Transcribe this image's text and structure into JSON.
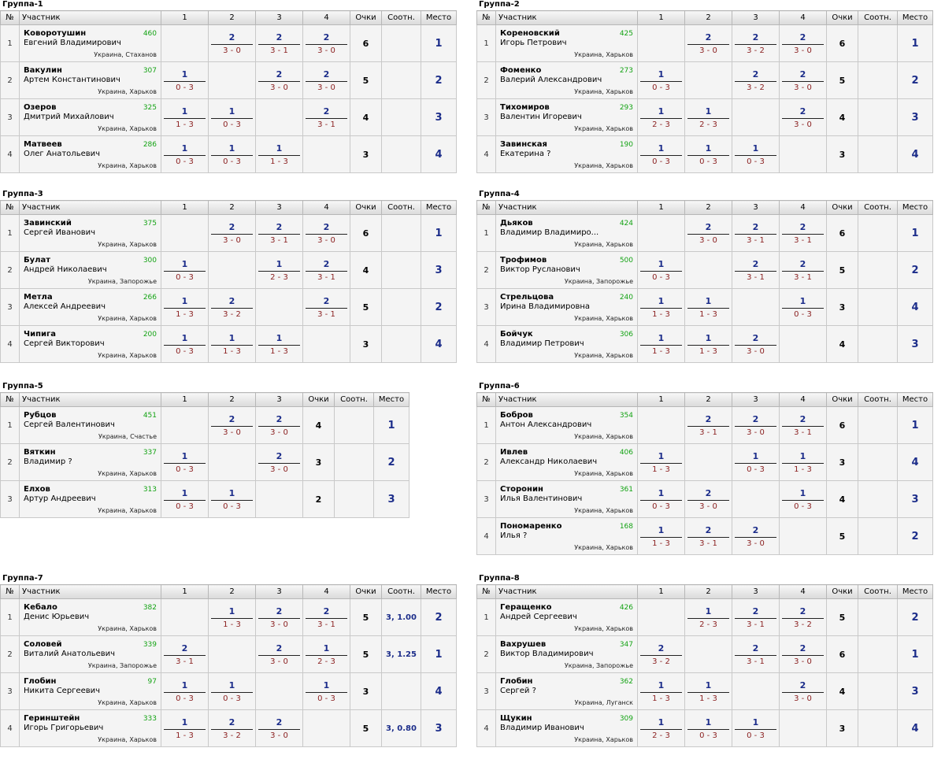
{
  "headers": {
    "no": "№",
    "participant": "Участник",
    "points": "Очки",
    "ratio": "Соотн.",
    "place": "Место"
  },
  "groups": [
    {
      "title": "Группа-1",
      "cols": [
        "1",
        "2",
        "3",
        "4"
      ],
      "rows": [
        {
          "n": "1",
          "last": "Коворотушин",
          "first": "Евгений Владимирович",
          "rating": "460",
          "city": "Украина, Стаханов",
          "results": [
            null,
            {
              "p": "2",
              "s": "3 - 0"
            },
            {
              "p": "2",
              "s": "3 - 1"
            },
            {
              "p": "2",
              "s": "3 - 0"
            }
          ],
          "points": "6",
          "ratio": "",
          "place": "1"
        },
        {
          "n": "2",
          "last": "Вакулин",
          "first": "Артем Константинович",
          "rating": "307",
          "city": "Украина, Харьков",
          "results": [
            {
              "p": "1",
              "s": "0 - 3"
            },
            null,
            {
              "p": "2",
              "s": "3 - 0"
            },
            {
              "p": "2",
              "s": "3 - 0"
            }
          ],
          "points": "5",
          "ratio": "",
          "place": "2"
        },
        {
          "n": "3",
          "last": "Озеров",
          "first": "Дмитрий Михайлович",
          "rating": "325",
          "city": "Украина, Харьков",
          "results": [
            {
              "p": "1",
              "s": "1 - 3"
            },
            {
              "p": "1",
              "s": "0 - 3"
            },
            null,
            {
              "p": "2",
              "s": "3 - 1"
            }
          ],
          "points": "4",
          "ratio": "",
          "place": "3"
        },
        {
          "n": "4",
          "last": "Матвеев",
          "first": "Олег Анатольевич",
          "rating": "286",
          "city": "Украина, Харьков",
          "results": [
            {
              "p": "1",
              "s": "0 - 3"
            },
            {
              "p": "1",
              "s": "0 - 3"
            },
            {
              "p": "1",
              "s": "1 - 3"
            },
            null
          ],
          "points": "3",
          "ratio": "",
          "place": "4"
        }
      ]
    },
    {
      "title": "Группа-2",
      "cols": [
        "1",
        "2",
        "3",
        "4"
      ],
      "rows": [
        {
          "n": "1",
          "last": "Кореновский",
          "first": "Игорь Петрович",
          "rating": "425",
          "city": "Украина, Харьков",
          "results": [
            null,
            {
              "p": "2",
              "s": "3 - 0"
            },
            {
              "p": "2",
              "s": "3 - 2"
            },
            {
              "p": "2",
              "s": "3 - 0"
            }
          ],
          "points": "6",
          "ratio": "",
          "place": "1"
        },
        {
          "n": "2",
          "last": "Фоменко",
          "first": "Валерий Александрович",
          "rating": "273",
          "city": "Украина, Харьков",
          "results": [
            {
              "p": "1",
              "s": "0 - 3"
            },
            null,
            {
              "p": "2",
              "s": "3 - 2"
            },
            {
              "p": "2",
              "s": "3 - 0"
            }
          ],
          "points": "5",
          "ratio": "",
          "place": "2"
        },
        {
          "n": "3",
          "last": "Тихомиров",
          "first": "Валентин Игоревич",
          "rating": "293",
          "city": "Украина, Харьков",
          "results": [
            {
              "p": "1",
              "s": "2 - 3"
            },
            {
              "p": "1",
              "s": "2 - 3"
            },
            null,
            {
              "p": "2",
              "s": "3 - 0"
            }
          ],
          "points": "4",
          "ratio": "",
          "place": "3"
        },
        {
          "n": "4",
          "last": "Завинская",
          "first": "Екатерина ?",
          "rating": "190",
          "city": "Украина, Харьков",
          "results": [
            {
              "p": "1",
              "s": "0 - 3"
            },
            {
              "p": "1",
              "s": "0 - 3"
            },
            {
              "p": "1",
              "s": "0 - 3"
            },
            null
          ],
          "points": "3",
          "ratio": "",
          "place": "4"
        }
      ]
    },
    {
      "title": "Группа-3",
      "cols": [
        "1",
        "2",
        "3",
        "4"
      ],
      "rows": [
        {
          "n": "1",
          "last": "Завинский",
          "first": "Сергей Иванович",
          "rating": "375",
          "city": "Украина, Харьков",
          "results": [
            null,
            {
              "p": "2",
              "s": "3 - 0"
            },
            {
              "p": "2",
              "s": "3 - 1"
            },
            {
              "p": "2",
              "s": "3 - 0"
            }
          ],
          "points": "6",
          "ratio": "",
          "place": "1"
        },
        {
          "n": "2",
          "last": "Булат",
          "first": "Андрей Николаевич",
          "rating": "300",
          "city": "Украина, Запорожье",
          "results": [
            {
              "p": "1",
              "s": "0 - 3"
            },
            null,
            {
              "p": "1",
              "s": "2 - 3"
            },
            {
              "p": "2",
              "s": "3 - 1"
            }
          ],
          "points": "4",
          "ratio": "",
          "place": "3"
        },
        {
          "n": "3",
          "last": "Метла",
          "first": "Алексей Андреевич",
          "rating": "266",
          "city": "Украина, Харьков",
          "results": [
            {
              "p": "1",
              "s": "1 - 3"
            },
            {
              "p": "2",
              "s": "3 - 2"
            },
            null,
            {
              "p": "2",
              "s": "3 - 1"
            }
          ],
          "points": "5",
          "ratio": "",
          "place": "2"
        },
        {
          "n": "4",
          "last": "Чипига",
          "first": "Сергей Викторович",
          "rating": "200",
          "city": "Украина, Харьков",
          "results": [
            {
              "p": "1",
              "s": "0 - 3"
            },
            {
              "p": "1",
              "s": "1 - 3"
            },
            {
              "p": "1",
              "s": "1 - 3"
            },
            null
          ],
          "points": "3",
          "ratio": "",
          "place": "4"
        }
      ]
    },
    {
      "title": "Группа-4",
      "cols": [
        "1",
        "2",
        "3",
        "4"
      ],
      "rows": [
        {
          "n": "1",
          "last": "Дьяков",
          "first": "Владимир Владимиро...",
          "rating": "424",
          "city": "Украина, Харьков",
          "results": [
            null,
            {
              "p": "2",
              "s": "3 - 0"
            },
            {
              "p": "2",
              "s": "3 - 1"
            },
            {
              "p": "2",
              "s": "3 - 1"
            }
          ],
          "points": "6",
          "ratio": "",
          "place": "1"
        },
        {
          "n": "2",
          "last": "Трофимов",
          "first": "Виктор Русланович",
          "rating": "500",
          "city": "Украина, Запорожье",
          "results": [
            {
              "p": "1",
              "s": "0 - 3"
            },
            null,
            {
              "p": "2",
              "s": "3 - 1"
            },
            {
              "p": "2",
              "s": "3 - 1"
            }
          ],
          "points": "5",
          "ratio": "",
          "place": "2"
        },
        {
          "n": "3",
          "last": "Стрельцова",
          "first": "Ирина Владимировна",
          "rating": "240",
          "city": "Украина, Харьков",
          "results": [
            {
              "p": "1",
              "s": "1 - 3"
            },
            {
              "p": "1",
              "s": "1 - 3"
            },
            null,
            {
              "p": "1",
              "s": "0 - 3"
            }
          ],
          "points": "3",
          "ratio": "",
          "place": "4"
        },
        {
          "n": "4",
          "last": "Бойчук",
          "first": "Владимир Петрович",
          "rating": "306",
          "city": "Украина, Харьков",
          "results": [
            {
              "p": "1",
              "s": "1 - 3"
            },
            {
              "p": "1",
              "s": "1 - 3"
            },
            {
              "p": "2",
              "s": "3 - 0"
            },
            null
          ],
          "points": "4",
          "ratio": "",
          "place": "3"
        }
      ]
    },
    {
      "title": "Группа-5",
      "cols": [
        "1",
        "2",
        "3"
      ],
      "rows": [
        {
          "n": "1",
          "last": "Рубцов",
          "first": "Сергей Валентинович",
          "rating": "451",
          "city": "Украина, Счастье",
          "results": [
            null,
            {
              "p": "2",
              "s": "3 - 0"
            },
            {
              "p": "2",
              "s": "3 - 0"
            }
          ],
          "points": "4",
          "ratio": "",
          "place": "1"
        },
        {
          "n": "2",
          "last": "Вяткин",
          "first": "Владимир ?",
          "rating": "337",
          "city": "Украина, Харьков",
          "results": [
            {
              "p": "1",
              "s": "0 - 3"
            },
            null,
            {
              "p": "2",
              "s": "3 - 0"
            }
          ],
          "points": "3",
          "ratio": "",
          "place": "2"
        },
        {
          "n": "3",
          "last": "Елхов",
          "first": "Артур Андреевич",
          "rating": "313",
          "city": "Украина, Харьков",
          "results": [
            {
              "p": "1",
              "s": "0 - 3"
            },
            {
              "p": "1",
              "s": "0 - 3"
            },
            null
          ],
          "points": "2",
          "ratio": "",
          "place": "3"
        }
      ]
    },
    {
      "title": "Группа-6",
      "cols": [
        "1",
        "2",
        "3",
        "4"
      ],
      "rows": [
        {
          "n": "1",
          "last": "Бобров",
          "first": "Антон Александрович",
          "rating": "354",
          "city": "Украина, Харьков",
          "results": [
            null,
            {
              "p": "2",
              "s": "3 - 1"
            },
            {
              "p": "2",
              "s": "3 - 0"
            },
            {
              "p": "2",
              "s": "3 - 1"
            }
          ],
          "points": "6",
          "ratio": "",
          "place": "1"
        },
        {
          "n": "2",
          "last": "Ивлев",
          "first": "Александр Николаевич",
          "rating": "406",
          "city": "Украина, Харьков",
          "results": [
            {
              "p": "1",
              "s": "1 - 3"
            },
            null,
            {
              "p": "1",
              "s": "0 - 3"
            },
            {
              "p": "1",
              "s": "1 - 3"
            }
          ],
          "points": "3",
          "ratio": "",
          "place": "4"
        },
        {
          "n": "3",
          "last": "Сторонин",
          "first": "Илья Валентинович",
          "rating": "361",
          "city": "Украина, Харьков",
          "results": [
            {
              "p": "1",
              "s": "0 - 3"
            },
            {
              "p": "2",
              "s": "3 - 0"
            },
            null,
            {
              "p": "1",
              "s": "0 - 3"
            }
          ],
          "points": "4",
          "ratio": "",
          "place": "3"
        },
        {
          "n": "4",
          "last": "Пономаренко",
          "first": "Илья ?",
          "rating": "168",
          "city": "Украина, Харьков",
          "results": [
            {
              "p": "1",
              "s": "1 - 3"
            },
            {
              "p": "2",
              "s": "3 - 1"
            },
            {
              "p": "2",
              "s": "3 - 0"
            },
            null
          ],
          "points": "5",
          "ratio": "",
          "place": "2"
        }
      ]
    },
    {
      "title": "Группа-7",
      "cols": [
        "1",
        "2",
        "3",
        "4"
      ],
      "rows": [
        {
          "n": "1",
          "last": "Кебало",
          "first": "Денис Юрьевич",
          "rating": "382",
          "city": "Украина, Харьков",
          "results": [
            null,
            {
              "p": "1",
              "s": "1 - 3"
            },
            {
              "p": "2",
              "s": "3 - 0"
            },
            {
              "p": "2",
              "s": "3 - 1"
            }
          ],
          "points": "5",
          "ratio": "3, 1.00",
          "place": "2"
        },
        {
          "n": "2",
          "last": "Соловей",
          "first": "Виталий Анатольевич",
          "rating": "339",
          "city": "Украина, Запорожье",
          "results": [
            {
              "p": "2",
              "s": "3 - 1"
            },
            null,
            {
              "p": "2",
              "s": "3 - 0"
            },
            {
              "p": "1",
              "s": "2 - 3"
            }
          ],
          "points": "5",
          "ratio": "3, 1.25",
          "place": "1"
        },
        {
          "n": "3",
          "last": "Глобин",
          "first": "Никита Сергеевич",
          "rating": "97",
          "city": "Украина, Харьков",
          "results": [
            {
              "p": "1",
              "s": "0 - 3"
            },
            {
              "p": "1",
              "s": "0 - 3"
            },
            null,
            {
              "p": "1",
              "s": "0 - 3"
            }
          ],
          "points": "3",
          "ratio": "",
          "place": "4"
        },
        {
          "n": "4",
          "last": "Геринштейн",
          "first": "Игорь Григорьевич",
          "rating": "333",
          "city": "Украина, Харьков",
          "results": [
            {
              "p": "1",
              "s": "1 - 3"
            },
            {
              "p": "2",
              "s": "3 - 2"
            },
            {
              "p": "2",
              "s": "3 - 0"
            },
            null
          ],
          "points": "5",
          "ratio": "3, 0.80",
          "place": "3"
        }
      ]
    },
    {
      "title": "Группа-8",
      "cols": [
        "1",
        "2",
        "3",
        "4"
      ],
      "rows": [
        {
          "n": "1",
          "last": "Геращенко",
          "first": "Андрей Сергеевич",
          "rating": "426",
          "city": "Украина, Харьков",
          "results": [
            null,
            {
              "p": "1",
              "s": "2 - 3"
            },
            {
              "p": "2",
              "s": "3 - 1"
            },
            {
              "p": "2",
              "s": "3 - 2"
            }
          ],
          "points": "5",
          "ratio": "",
          "place": "2"
        },
        {
          "n": "2",
          "last": "Вахрушев",
          "first": "Виктор Владимирович",
          "rating": "347",
          "city": "Украина, Запорожье",
          "results": [
            {
              "p": "2",
              "s": "3 - 2"
            },
            null,
            {
              "p": "2",
              "s": "3 - 1"
            },
            {
              "p": "2",
              "s": "3 - 0"
            }
          ],
          "points": "6",
          "ratio": "",
          "place": "1"
        },
        {
          "n": "3",
          "last": "Глобин",
          "first": "Сергей ?",
          "rating": "362",
          "city": "Украина, Луганск",
          "results": [
            {
              "p": "1",
              "s": "1 - 3"
            },
            {
              "p": "1",
              "s": "1 - 3"
            },
            null,
            {
              "p": "2",
              "s": "3 - 0"
            }
          ],
          "points": "4",
          "ratio": "",
          "place": "3"
        },
        {
          "n": "4",
          "last": "Щукин",
          "first": "Владимир Иванович",
          "rating": "309",
          "city": "Украина, Харьков",
          "results": [
            {
              "p": "1",
              "s": "2 - 3"
            },
            {
              "p": "1",
              "s": "0 - 3"
            },
            {
              "p": "1",
              "s": "0 - 3"
            },
            null
          ],
          "points": "3",
          "ratio": "",
          "place": "4"
        }
      ]
    }
  ]
}
